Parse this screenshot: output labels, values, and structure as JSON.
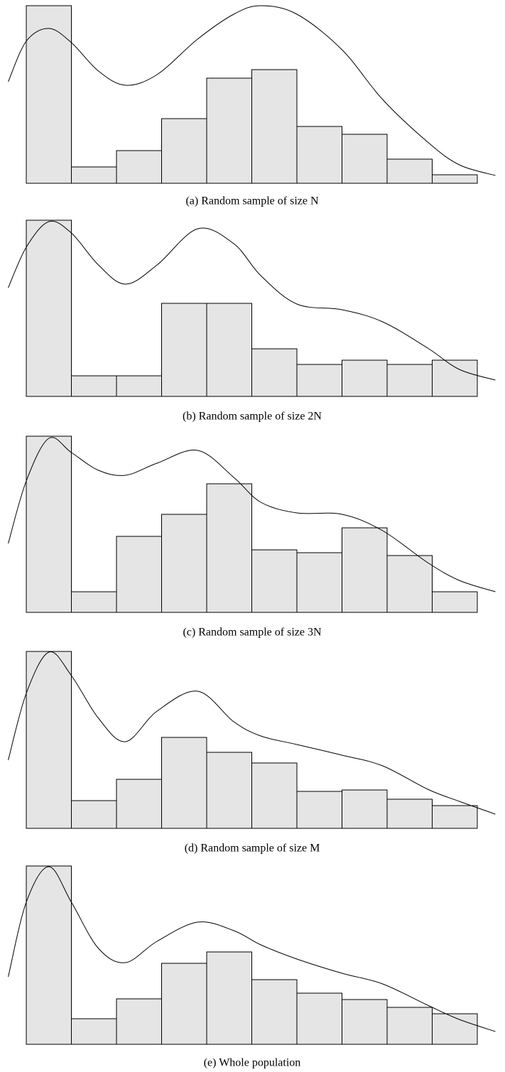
{
  "chart_data": [
    {
      "type": "histogram",
      "caption": "(a) Random sample of size N",
      "color": "#e5e5e5",
      "xlim": [
        -0.4,
        10.4
      ],
      "ylim": [
        0,
        250
      ],
      "bins": [
        0,
        1,
        2,
        3,
        4,
        5,
        6,
        7,
        8,
        9,
        10
      ],
      "values": [
        250,
        23,
        46,
        91,
        148,
        160,
        80,
        69,
        34,
        12
      ],
      "line": {
        "color": "#000000",
        "x": [
          -0.4,
          0,
          0.5,
          1,
          1.6,
          2.2,
          2.9,
          3.8,
          4.6,
          5.2,
          6,
          7,
          7.9,
          8.9,
          9.6,
          10.4
        ],
        "values": [
          143,
          200,
          218,
          198,
          158,
          138,
          153,
          203,
          238,
          250,
          238,
          188,
          118,
          58,
          26,
          11
        ]
      }
    },
    {
      "type": "histogram",
      "caption": "(b) Random sample of size 2N",
      "color": "#e5e5e5",
      "xlim": [
        -0.4,
        10.4
      ],
      "ylim": [
        0,
        250
      ],
      "bins": [
        0,
        1,
        2,
        3,
        4,
        5,
        6,
        7,
        8,
        9,
        10
      ],
      "values": [
        248,
        29,
        29,
        131,
        131,
        67,
        45,
        51,
        45,
        51
      ],
      "line": {
        "color": "#000000",
        "x": [
          -0.4,
          0,
          0.5,
          1,
          1.6,
          2.2,
          2.9,
          3.8,
          4.6,
          5.2,
          6,
          7,
          7.9,
          8.9,
          9.6,
          10.4
        ],
        "values": [
          153,
          210,
          246,
          230,
          185,
          158,
          185,
          236,
          215,
          170,
          130,
          122,
          105,
          68,
          38,
          23
        ]
      }
    },
    {
      "type": "histogram",
      "caption": "(c) Random sample of size 3N",
      "color": "#e5e5e5",
      "xlim": [
        -0.4,
        10.4
      ],
      "ylim": [
        0,
        250
      ],
      "bins": [
        0,
        1,
        2,
        3,
        4,
        5,
        6,
        7,
        8,
        9,
        10
      ],
      "values": [
        248,
        29,
        107,
        138,
        181,
        88,
        84,
        119,
        80,
        29
      ],
      "line": {
        "color": "#000000",
        "x": [
          -0.4,
          0,
          0.5,
          1,
          1.6,
          2.2,
          2.9,
          3.8,
          4.6,
          5.2,
          6,
          7,
          7.9,
          8.9,
          9.6,
          10.4
        ],
        "values": [
          97,
          185,
          245,
          225,
          200,
          193,
          210,
          228,
          190,
          155,
          140,
          138,
          115,
          70,
          45,
          29
        ]
      }
    },
    {
      "type": "histogram",
      "caption": "(d) Random sample of size M",
      "color": "#e5e5e5",
      "xlim": [
        -0.4,
        10.4
      ],
      "ylim": [
        0,
        250
      ],
      "bins": [
        0,
        1,
        2,
        3,
        4,
        5,
        6,
        7,
        8,
        9,
        10
      ],
      "values": [
        249,
        39,
        69,
        128,
        107,
        92,
        52,
        54,
        41,
        32
      ],
      "line": {
        "color": "#000000",
        "x": [
          -0.4,
          0,
          0.5,
          1,
          1.6,
          2.2,
          2.9,
          3.8,
          4.6,
          5.2,
          6,
          7,
          7.9,
          8.9,
          9.6,
          10.4
        ],
        "values": [
          96,
          190,
          248,
          215,
          155,
          122,
          165,
          193,
          150,
          130,
          118,
          103,
          88,
          55,
          38,
          20
        ]
      }
    },
    {
      "type": "histogram",
      "caption": "(e) Whole population",
      "color": "#e5e5e5",
      "xlim": [
        -0.4,
        10.4
      ],
      "ylim": [
        0,
        250
      ],
      "bins": [
        0,
        1,
        2,
        3,
        4,
        5,
        6,
        7,
        8,
        9,
        10
      ],
      "values": [
        251,
        36,
        64,
        114,
        130,
        91,
        72,
        63,
        52,
        43
      ],
      "line": {
        "color": "#000000",
        "x": [
          -0.4,
          0,
          0.5,
          1,
          1.6,
          2.2,
          2.9,
          3.8,
          4.6,
          5.2,
          6,
          7,
          7.9,
          8.9,
          9.6,
          10.4
        ],
        "values": [
          95,
          200,
          250,
          200,
          135,
          115,
          145,
          172,
          160,
          140,
          120,
          100,
          85,
          55,
          35,
          18
        ]
      }
    }
  ]
}
